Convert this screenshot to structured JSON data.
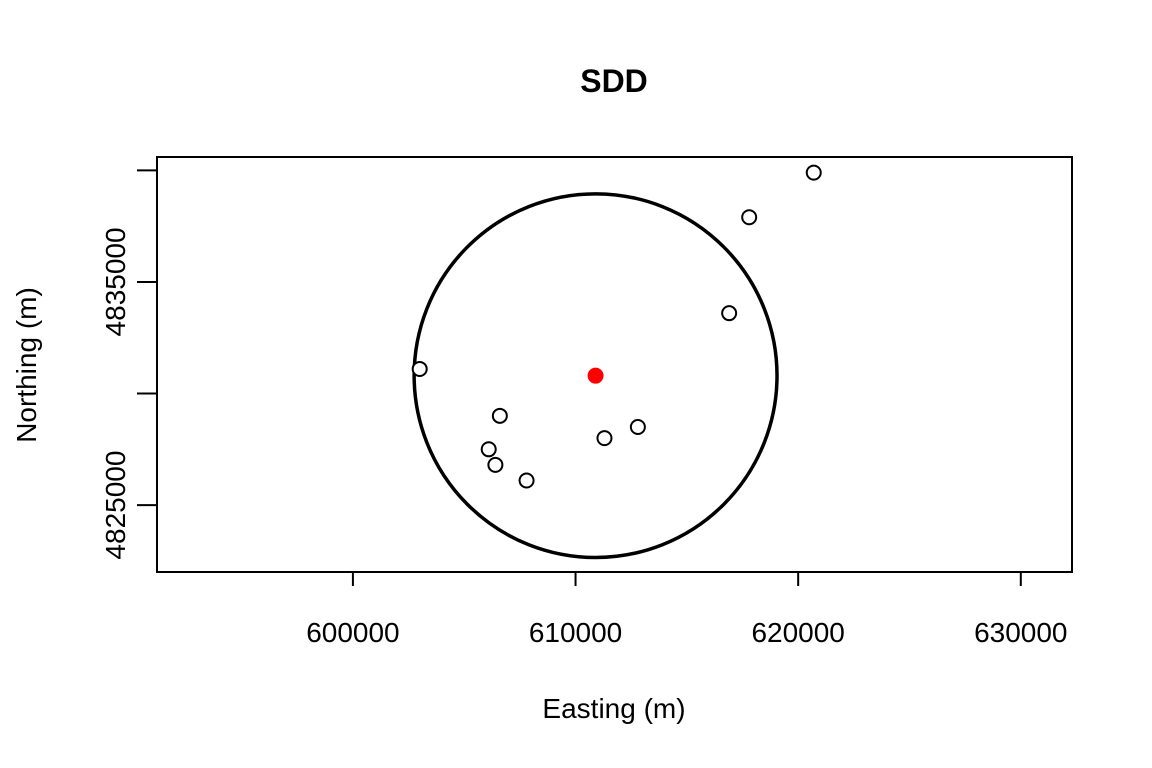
{
  "chart_data": {
    "type": "scatter",
    "title": "SDD",
    "xlabel": "Easting (m)",
    "ylabel": "Northing (m)",
    "xlim": [
      591200,
      632300
    ],
    "ylim": [
      4822000,
      4840600
    ],
    "x_ticks": [
      600000,
      610000,
      620000,
      630000
    ],
    "y_ticks": [
      4825000,
      4830000,
      4835000,
      4840000
    ],
    "x_tick_labels": [
      "600000",
      "610000",
      "620000",
      "630000"
    ],
    "y_tick_labels": [
      "4825000",
      "",
      "4835000",
      ""
    ],
    "grid": false,
    "legend": "none",
    "series": [
      {
        "marker": "open-circle",
        "color": "#000000",
        "points": [
          {
            "x": 620700,
            "y": 4839900
          },
          {
            "x": 617800,
            "y": 4837900
          },
          {
            "x": 616900,
            "y": 4833600
          },
          {
            "x": 603000,
            "y": 4831100
          },
          {
            "x": 606600,
            "y": 4829000
          },
          {
            "x": 612800,
            "y": 4828500
          },
          {
            "x": 611300,
            "y": 4828000
          },
          {
            "x": 606100,
            "y": 4827500
          },
          {
            "x": 606400,
            "y": 4826800
          },
          {
            "x": 607800,
            "y": 4826100
          }
        ]
      },
      {
        "marker": "filled-circle",
        "color": "#ff0000",
        "points": [
          {
            "x": 610900,
            "y": 4830800
          }
        ]
      }
    ],
    "circle": {
      "center_x": 610900,
      "center_y": 4830800,
      "radius": 8150,
      "color": "#000000"
    }
  }
}
